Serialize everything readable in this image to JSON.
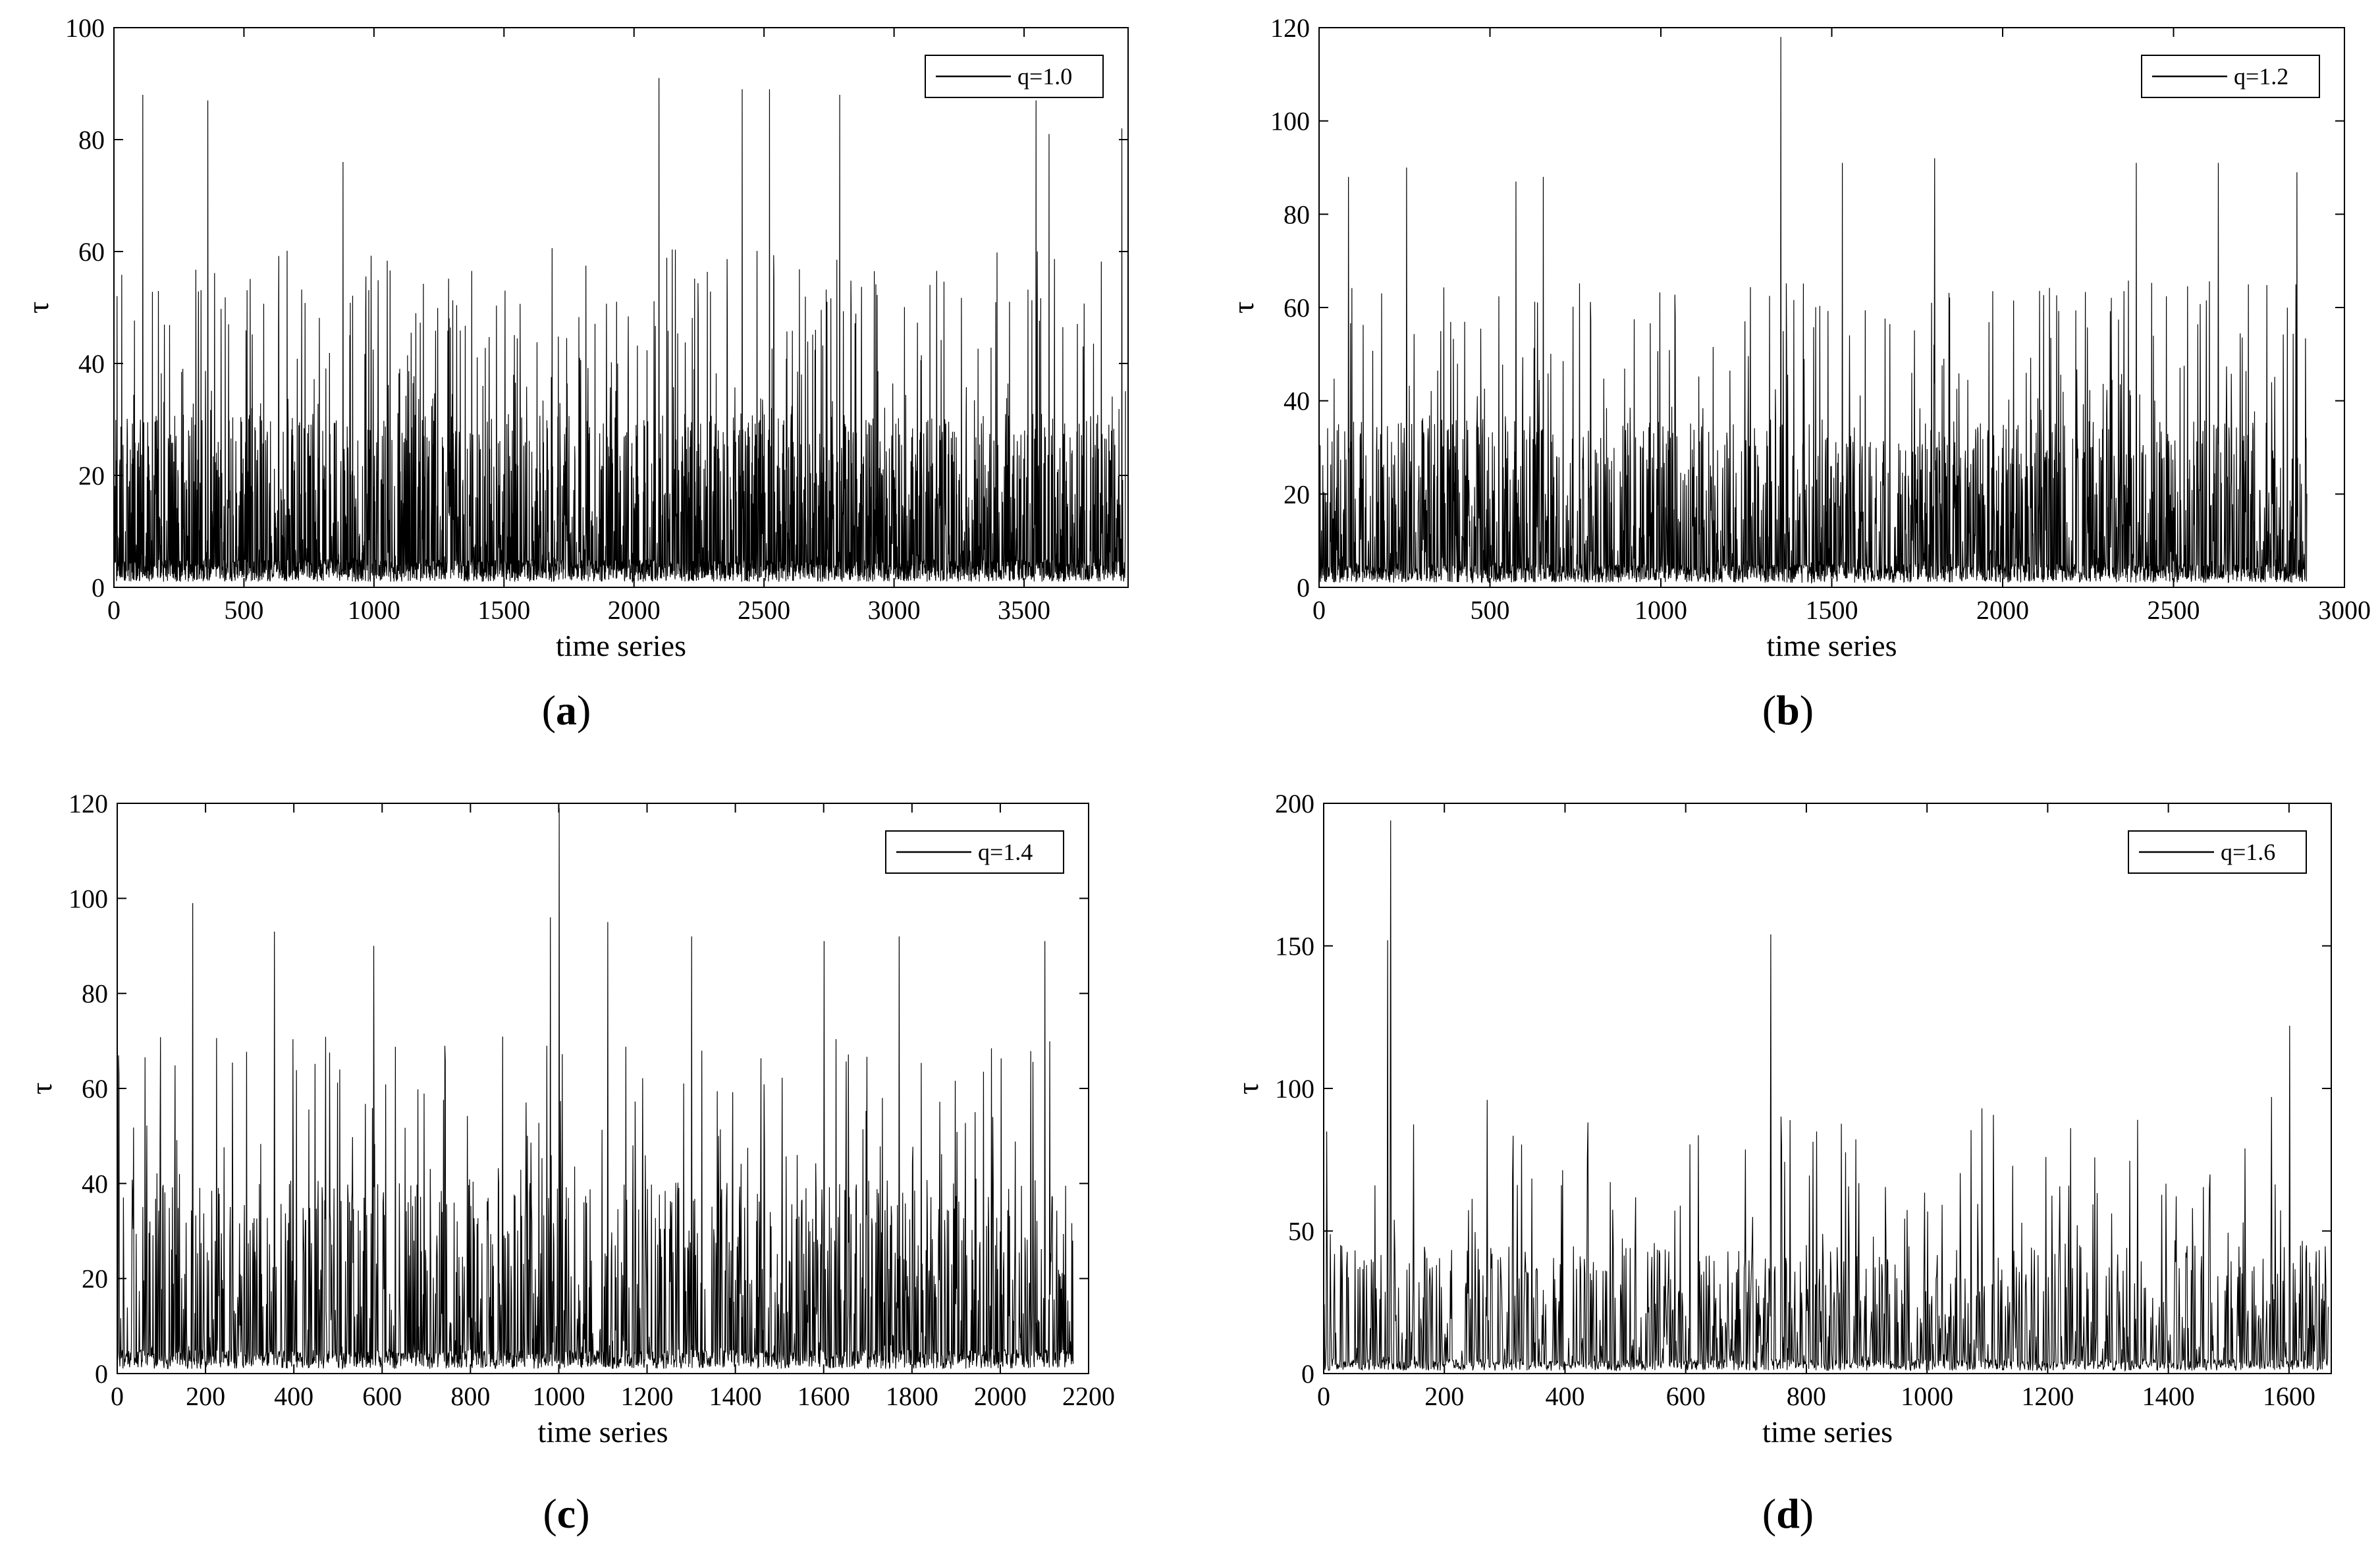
{
  "figure": {
    "panels": [
      "a",
      "b",
      "c",
      "d"
    ]
  },
  "chart_data": [
    {
      "type": "line",
      "panel": "a",
      "caption": "(a)",
      "xlabel": "time series",
      "ylabel": "τ",
      "xlim": [
        0,
        3900
      ],
      "ylim": [
        0,
        100
      ],
      "xticks": [
        0,
        500,
        1000,
        1500,
        2000,
        2500,
        3000,
        3500
      ],
      "yticks": [
        0,
        20,
        40,
        60,
        80,
        100
      ],
      "legend": {
        "label": "q=1.0",
        "position": "top-right"
      },
      "series": [
        {
          "name": "q=1.0",
          "color": "#000000",
          "n_points": 3890,
          "base_min": 1,
          "typical_max": 30,
          "frequent_max": 60,
          "peaks": [
            [
              110,
              88
            ],
            [
              360,
              87
            ],
            [
              880,
              76
            ],
            [
              2095,
              91
            ],
            [
              2415,
              89
            ],
            [
              2520,
              89
            ],
            [
              2790,
              88
            ],
            [
              3545,
              87
            ],
            [
              3595,
              81
            ],
            [
              3875,
              82
            ]
          ]
        }
      ]
    },
    {
      "type": "line",
      "panel": "b",
      "caption": "(b)",
      "xlabel": "time series",
      "ylabel": "τ",
      "xlim": [
        0,
        3000
      ],
      "ylim": [
        0,
        120
      ],
      "xticks": [
        0,
        500,
        1000,
        1500,
        2000,
        2500,
        3000
      ],
      "yticks": [
        0,
        20,
        40,
        60,
        80,
        100,
        120
      ],
      "legend": {
        "label": "q=1.2",
        "position": "top-right"
      },
      "series": [
        {
          "name": "q=1.2",
          "color": "#000000",
          "n_points": 2890,
          "base_min": 1,
          "typical_max": 35,
          "frequent_max": 65,
          "peaks": [
            [
              85,
              88
            ],
            [
              255,
              90
            ],
            [
              575,
              87
            ],
            [
              655,
              88
            ],
            [
              1350,
              118
            ],
            [
              1530,
              91
            ],
            [
              1800,
              92
            ],
            [
              2390,
              91
            ],
            [
              2630,
              91
            ],
            [
              2860,
              89
            ]
          ]
        }
      ]
    },
    {
      "type": "line",
      "panel": "c",
      "caption": "(c)",
      "xlabel": "time series",
      "ylabel": "τ",
      "xlim": [
        0,
        2200
      ],
      "ylim": [
        0,
        120
      ],
      "xticks": [
        0,
        200,
        400,
        600,
        800,
        1000,
        1200,
        1400,
        1600,
        1800,
        2000,
        2200
      ],
      "yticks": [
        0,
        20,
        40,
        60,
        80,
        100,
        120
      ],
      "legend": {
        "label": "q=1.4",
        "position": "top-right"
      },
      "series": [
        {
          "name": "q=1.4",
          "color": "#000000",
          "n_points": 2165,
          "base_min": 1,
          "typical_max": 40,
          "frequent_max": 70,
          "peaks": [
            [
              170,
              99
            ],
            [
              355,
              93
            ],
            [
              580,
              90
            ],
            [
              980,
              96
            ],
            [
              1000,
              119
            ],
            [
              1110,
              95
            ],
            [
              1300,
              92
            ],
            [
              1600,
              91
            ],
            [
              1770,
              92
            ],
            [
              2100,
              91
            ]
          ]
        }
      ]
    },
    {
      "type": "line",
      "panel": "d",
      "caption": "(d)",
      "xlabel": "time series",
      "ylabel": "τ",
      "xlim": [
        0,
        1670
      ],
      "ylim": [
        0,
        200
      ],
      "xticks": [
        0,
        200,
        400,
        600,
        800,
        1000,
        1200,
        1400,
        1600
      ],
      "yticks": [
        0,
        50,
        100,
        150,
        200
      ],
      "legend": {
        "label": "q=1.6",
        "position": "top-right"
      },
      "series": [
        {
          "name": "q=1.6",
          "color": "#000000",
          "n_points": 1665,
          "base_min": 1,
          "typical_max": 45,
          "frequent_max": 90,
          "peaks": [
            [
              110,
              194
            ],
            [
              105,
              152
            ],
            [
              740,
              154
            ],
            [
              1600,
              122
            ],
            [
              1570,
              97
            ],
            [
              1090,
              93
            ],
            [
              270,
              96
            ]
          ]
        }
      ]
    }
  ]
}
